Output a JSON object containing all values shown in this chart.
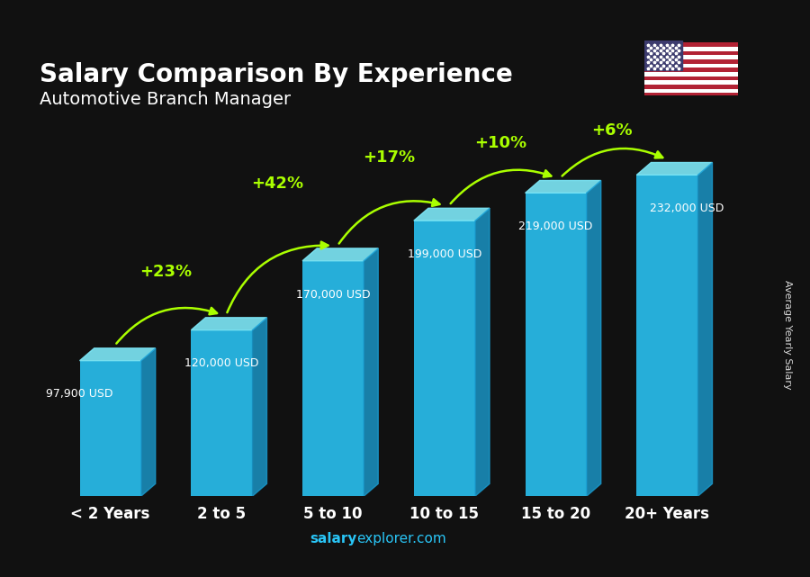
{
  "title": "Salary Comparison By Experience",
  "subtitle": "Automotive Branch Manager",
  "categories": [
    "< 2 Years",
    "2 to 5",
    "5 to 10",
    "10 to 15",
    "15 to 20",
    "20+ Years"
  ],
  "values": [
    97900,
    120000,
    170000,
    199000,
    219000,
    232000
  ],
  "value_labels": [
    "97,900 USD",
    "120,000 USD",
    "170,000 USD",
    "199,000 USD",
    "219,000 USD",
    "232,000 USD"
  ],
  "pct_labels": [
    "+23%",
    "+42%",
    "+17%",
    "+10%",
    "+6%"
  ],
  "bar_color": "#29c5f6",
  "bar_color_top": "#7de8f8",
  "bar_color_side": "#1a9fd4",
  "pct_color": "#aaff00",
  "title_color": "#ffffff",
  "bg_color": "#111111",
  "ylabel": "Average Yearly Salary",
  "footer_bold": "salary",
  "footer_normal": "explorer.com",
  "ylim": [
    0,
    275000
  ],
  "value_x_offsets": [
    -0.28,
    0.0,
    0.0,
    0.0,
    0.0,
    0.18
  ],
  "value_y_offsets": [
    -20000,
    -20000,
    -20000,
    -20000,
    -20000,
    -20000
  ],
  "arc_configs": [
    [
      0,
      1,
      "+23%",
      28000,
      28000
    ],
    [
      1,
      2,
      "+42%",
      42000,
      42000
    ],
    [
      2,
      3,
      "+17%",
      32000,
      32000
    ],
    [
      3,
      4,
      "+10%",
      22000,
      22000
    ],
    [
      4,
      5,
      "+6%",
      18000,
      18000
    ]
  ]
}
